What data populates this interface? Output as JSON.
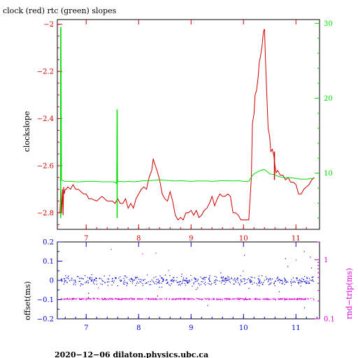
{
  "colors": {
    "clock": "#cc0000",
    "rtc": "#00dd00",
    "offset": "#0000cc",
    "roundtrip": "#dd00dd",
    "axis": "#000000",
    "bg": "#ffffff"
  },
  "chart_data": [
    {
      "type": "line",
      "title": "clock (red) rtc (green) slopes",
      "ylabel": "clockslope",
      "xlim": [
        6.45,
        11.45
      ],
      "ylim": [
        -2.87,
        -1.98
      ],
      "y2lim": [
        2.5,
        30.5
      ],
      "grid": false,
      "x_ticks": [
        7,
        8,
        9,
        10,
        11
      ],
      "y_ticks": [
        -2,
        -2.2,
        -2.4,
        -2.6,
        -2.8
      ],
      "y2_ticks": [
        10,
        20,
        30
      ],
      "series": [
        {
          "name": "clock",
          "axis": "left",
          "x": [
            6.5,
            6.52,
            6.53,
            6.55,
            6.56,
            6.57,
            6.58,
            6.6,
            6.62,
            6.65,
            6.7,
            6.75,
            6.8,
            6.85,
            6.9,
            6.95,
            7.0,
            7.05,
            7.1,
            7.2,
            7.3,
            7.4,
            7.5,
            7.55,
            7.6,
            7.65,
            7.7,
            7.75,
            7.8,
            7.85,
            7.9,
            7.95,
            8.0,
            8.05,
            8.1,
            8.15,
            8.2,
            8.25,
            8.28,
            8.3,
            8.32,
            8.35,
            8.4,
            8.45,
            8.5,
            8.55,
            8.6,
            8.65,
            8.7,
            8.75,
            8.8,
            8.85,
            8.9,
            8.95,
            9.0,
            9.05,
            9.1,
            9.15,
            9.2,
            9.25,
            9.3,
            9.35,
            9.4,
            9.45,
            9.5,
            9.55,
            9.6,
            9.65,
            9.7,
            9.75,
            9.8,
            9.85,
            9.9,
            9.95,
            10.0,
            10.05,
            10.1,
            10.15,
            10.17,
            10.2,
            10.22,
            10.25,
            10.28,
            10.3,
            10.32,
            10.35,
            10.38,
            10.4,
            10.42,
            10.45,
            10.47,
            10.5,
            10.52,
            10.55,
            10.58,
            10.6,
            10.62,
            10.65,
            10.7,
            10.75,
            10.8,
            10.85,
            10.9,
            10.95,
            11.0,
            11.05,
            11.1,
            11.15,
            11.2,
            11.25,
            11.3,
            11.35
          ],
          "y": [
            -2.8,
            -2.7,
            -2.8,
            -2.7,
            -2.81,
            -2.69,
            -2.72,
            -2.7,
            -2.7,
            -2.69,
            -2.7,
            -2.68,
            -2.7,
            -2.7,
            -2.71,
            -2.72,
            -2.72,
            -2.74,
            -2.74,
            -2.75,
            -2.73,
            -2.75,
            -2.75,
            -2.76,
            -2.74,
            -2.76,
            -2.76,
            -2.74,
            -2.78,
            -2.76,
            -2.78,
            -2.74,
            -2.72,
            -2.7,
            -2.69,
            -2.7,
            -2.65,
            -2.62,
            -2.57,
            -2.59,
            -2.6,
            -2.62,
            -2.66,
            -2.72,
            -2.74,
            -2.75,
            -2.71,
            -2.75,
            -2.81,
            -2.83,
            -2.82,
            -2.83,
            -2.8,
            -2.8,
            -2.79,
            -2.81,
            -2.79,
            -2.82,
            -2.81,
            -2.79,
            -2.78,
            -2.76,
            -2.73,
            -2.77,
            -2.74,
            -2.72,
            -2.73,
            -2.73,
            -2.72,
            -2.73,
            -2.8,
            -2.8,
            -2.81,
            -2.83,
            -2.83,
            -2.83,
            -2.83,
            -2.65,
            -2.42,
            -2.38,
            -2.3,
            -2.28,
            -2.22,
            -2.16,
            -2.14,
            -2.1,
            -2.03,
            -2.02,
            -2.16,
            -2.33,
            -2.44,
            -2.48,
            -2.54,
            -2.53,
            -2.56,
            -2.6,
            -2.63,
            -2.62,
            -2.64,
            -2.64,
            -2.66,
            -2.65,
            -2.67,
            -2.67,
            -2.68,
            -2.72,
            -2.72,
            -2.7,
            -2.69,
            -2.68,
            -2.66,
            -2.65
          ]
        },
        {
          "name": "rtc",
          "axis": "right",
          "x": [
            6.5,
            6.51,
            6.52,
            6.53,
            6.55,
            6.6,
            6.7,
            6.8,
            6.9,
            7.0,
            7.1,
            7.2,
            7.3,
            7.4,
            7.5,
            7.55,
            7.58,
            7.59,
            7.6,
            7.62,
            7.65,
            7.7,
            7.8,
            7.9,
            8.0,
            8.1,
            8.2,
            8.3,
            8.4,
            8.5,
            8.6,
            8.7,
            8.8,
            8.9,
            9.0,
            9.1,
            9.2,
            9.3,
            9.4,
            9.5,
            9.6,
            9.7,
            9.8,
            9.9,
            10.0,
            10.1,
            10.15,
            10.2,
            10.25,
            10.3,
            10.35,
            10.4,
            10.45,
            10.5,
            10.55,
            10.6,
            10.65,
            10.7,
            10.8,
            10.9,
            11.0,
            11.1,
            11.2,
            11.3,
            11.35
          ],
          "y": [
            9,
            9.2,
            29.5,
            9.1,
            9.0,
            8.9,
            8.9,
            8.85,
            8.85,
            8.9,
            8.9,
            8.9,
            8.85,
            8.85,
            8.85,
            8.8,
            8.6,
            18.5,
            8.8,
            8.9,
            8.9,
            8.85,
            8.9,
            8.85,
            8.9,
            9.0,
            9.0,
            9.05,
            9.1,
            9.05,
            9.0,
            8.95,
            9.0,
            8.95,
            8.9,
            8.95,
            8.95,
            8.95,
            8.9,
            8.95,
            9.0,
            9.0,
            8.95,
            9.0,
            8.9,
            8.9,
            9.5,
            9.9,
            10.1,
            10.3,
            10.4,
            10.5,
            10.2,
            9.9,
            9.85,
            9.8,
            9.6,
            9.5,
            9.4,
            9.4,
            9.3,
            9.2,
            9.2,
            9.3,
            9.3
          ]
        }
      ],
      "spikes": [
        {
          "series": "rtc",
          "x": 6.515,
          "from": 4.0,
          "to": 29.5
        },
        {
          "series": "rtc",
          "x": 7.59,
          "from": 4.0,
          "to": 18.5
        },
        {
          "series": "clock",
          "x": 10.59,
          "from": -2.54,
          "to": -2.66
        }
      ]
    },
    {
      "type": "scatter",
      "ylabel": "offset(ms)",
      "y2label": "rnd−trip(ms)",
      "xlim": [
        6.45,
        11.45
      ],
      "ylim": [
        -0.2,
        0.2
      ],
      "y2lim": [
        0.1,
        2.0
      ],
      "y2scale": "log",
      "grid": false,
      "x_ticks": [
        7,
        8,
        9,
        10,
        11
      ],
      "y_ticks": [
        0.2,
        0.1,
        0,
        -0.1,
        -0.2
      ],
      "y_tick_labels": [
        "0.2",
        "0.1",
        "0",
        "−0.1",
        "−0.2"
      ],
      "y2_ticks": [
        1,
        0.1
      ],
      "y2_tick_labels": [
        "1",
        "0.1"
      ],
      "series": [
        {
          "name": "offset",
          "axis": "left",
          "x_range": [
            6.5,
            11.35
          ],
          "center": 0.0,
          "spread": 0.025,
          "count": 520
        },
        {
          "name": "roundtrip",
          "axis": "right",
          "x_range": [
            6.5,
            11.35
          ],
          "center": 0.22,
          "spread": 0.01,
          "count": 520
        }
      ]
    }
  ],
  "footer": {
    "text": "2020−12−06  dilaton.physics.ubc.ca"
  }
}
